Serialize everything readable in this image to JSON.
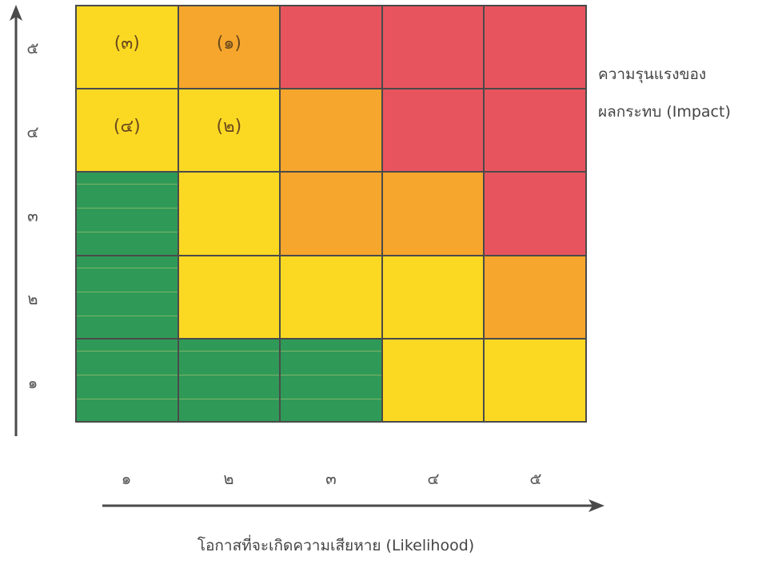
{
  "colors": {
    "red": "#e8545e",
    "orange": "#f6a62c",
    "yellow": "#fbd923",
    "green": "#2f9a57"
  },
  "matrix": {
    "rows": [
      {
        "impact": "๕",
        "cells": [
          {
            "color": "yellow",
            "mark": "(๓)"
          },
          {
            "color": "orange",
            "mark": "(๑)"
          },
          {
            "color": "red",
            "mark": ""
          },
          {
            "color": "red",
            "mark": ""
          },
          {
            "color": "red",
            "mark": ""
          }
        ]
      },
      {
        "impact": "๔",
        "cells": [
          {
            "color": "yellow",
            "mark": "(๔)"
          },
          {
            "color": "yellow",
            "mark": "(๒)"
          },
          {
            "color": "orange",
            "mark": ""
          },
          {
            "color": "red",
            "mark": ""
          },
          {
            "color": "red",
            "mark": ""
          }
        ]
      },
      {
        "impact": "๓",
        "cells": [
          {
            "color": "green",
            "mark": ""
          },
          {
            "color": "yellow",
            "mark": ""
          },
          {
            "color": "orange",
            "mark": ""
          },
          {
            "color": "orange",
            "mark": ""
          },
          {
            "color": "red",
            "mark": ""
          }
        ]
      },
      {
        "impact": "๒",
        "cells": [
          {
            "color": "green",
            "mark": ""
          },
          {
            "color": "yellow",
            "mark": ""
          },
          {
            "color": "yellow",
            "mark": ""
          },
          {
            "color": "yellow",
            "mark": ""
          },
          {
            "color": "orange",
            "mark": ""
          }
        ]
      },
      {
        "impact": "๑",
        "cells": [
          {
            "color": "green",
            "mark": ""
          },
          {
            "color": "green",
            "mark": ""
          },
          {
            "color": "green",
            "mark": ""
          },
          {
            "color": "yellow",
            "mark": ""
          },
          {
            "color": "yellow",
            "mark": ""
          }
        ]
      }
    ],
    "likelihood_levels": [
      "๑",
      "๒",
      "๓",
      "๔",
      "๕"
    ]
  },
  "labels": {
    "impact_line1": "ความรุนแรงของ",
    "impact_line2": "ผลกระทบ (Impact)",
    "likelihood": "โอกาสที่จะเกิดความเสียหาย (Likelihood)"
  }
}
